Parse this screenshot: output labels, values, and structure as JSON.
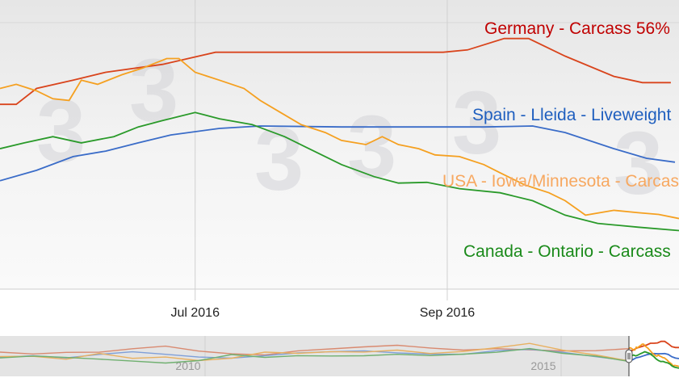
{
  "chart_data": {
    "type": "line",
    "title": "",
    "xlabel": "",
    "ylabel": "",
    "x_tick_labels": [
      "Jul 2016",
      "Sep 2016"
    ],
    "x_ticks": [
      "2016-07-01",
      "2016-09-01"
    ],
    "xlim": [
      "2016-05-14",
      "2016-10-28"
    ],
    "ylim": [
      0,
      120
    ],
    "y_axis_shown": false,
    "grid": true,
    "legend": "inline labels",
    "series": [
      {
        "name": "Germany - Carcass 56%",
        "color": "#d9441c",
        "label_color": "#c00000",
        "x": [
          "2016-05-14",
          "2016-05-18",
          "2016-05-23",
          "2016-06-01",
          "2016-06-09",
          "2016-06-23",
          "2016-07-06",
          "2016-08-31",
          "2016-09-06",
          "2016-09-15",
          "2016-09-21",
          "2016-09-30",
          "2016-10-12",
          "2016-10-19",
          "2016-10-26"
        ],
        "y": [
          76.7,
          76.7,
          83.3,
          86.7,
          90,
          93.3,
          98.3,
          98.3,
          99.3,
          104,
          104,
          96.7,
          88.3,
          85.7,
          85.7
        ]
      },
      {
        "name": "Spain - Lleida - Liveweight",
        "color": "#3a6cc8",
        "label_color": "#1f5fbf",
        "x": [
          "2016-05-14",
          "2016-05-23",
          "2016-06-01",
          "2016-06-09",
          "2016-06-17",
          "2016-06-25",
          "2016-07-07",
          "2016-07-17",
          "2016-08-06",
          "2016-09-10",
          "2016-09-22",
          "2016-09-30",
          "2016-10-12",
          "2016-10-20",
          "2016-10-27"
        ],
        "y": [
          45,
          49.3,
          55,
          57.3,
          60.7,
          64,
          66.7,
          67.7,
          67.3,
          67.3,
          67.7,
          65,
          58.3,
          54.3,
          52.7
        ]
      },
      {
        "name": "USA - Iowa/Minnesota - Carcass",
        "color": "#f5a020",
        "label_color": "#f7a860",
        "x": [
          "2016-05-14",
          "2016-05-18",
          "2016-05-23",
          "2016-05-27",
          "2016-05-31",
          "2016-06-03",
          "2016-06-07",
          "2016-06-13",
          "2016-06-18",
          "2016-06-24",
          "2016-06-27",
          "2016-07-01",
          "2016-07-07",
          "2016-07-13",
          "2016-07-17",
          "2016-07-22",
          "2016-07-27",
          "2016-08-02",
          "2016-08-06",
          "2016-08-12",
          "2016-08-16",
          "2016-08-20",
          "2016-08-25",
          "2016-08-29",
          "2016-09-04",
          "2016-09-10",
          "2016-09-14",
          "2016-09-20",
          "2016-09-26",
          "2016-09-30",
          "2016-10-05",
          "2016-10-12",
          "2016-10-18",
          "2016-10-23",
          "2016-10-28"
        ],
        "y": [
          83.3,
          85,
          82.3,
          79,
          78.3,
          86.7,
          85,
          89,
          91.7,
          95.7,
          95.7,
          90,
          86.7,
          83.3,
          78.3,
          73.3,
          68.3,
          65,
          61.7,
          60,
          63.3,
          60,
          58.3,
          55.7,
          55,
          51.7,
          48.3,
          43.3,
          40,
          36.7,
          30.7,
          32.7,
          31.7,
          31,
          29.3
        ]
      },
      {
        "name": "Canada - Ontario - Carcass",
        "color": "#2a9a2a",
        "label_color": "#1a8a1a",
        "x": [
          "2016-05-14",
          "2016-05-20",
          "2016-05-27",
          "2016-06-03",
          "2016-06-11",
          "2016-06-17",
          "2016-06-23",
          "2016-07-01",
          "2016-07-07",
          "2016-07-15",
          "2016-07-23",
          "2016-07-29",
          "2016-08-06",
          "2016-08-14",
          "2016-08-20",
          "2016-08-27",
          "2016-09-04",
          "2016-09-14",
          "2016-09-22",
          "2016-09-30",
          "2016-10-08",
          "2016-10-18",
          "2016-10-28"
        ],
        "y": [
          58.3,
          60.7,
          63.3,
          60.7,
          63.3,
          67.3,
          70,
          73.3,
          70.7,
          68.3,
          63.3,
          58.3,
          51.7,
          46.7,
          44,
          44.3,
          41.7,
          40,
          36.7,
          30.7,
          27.3,
          25.7,
          24.3
        ]
      }
    ],
    "navigator": {
      "tick_labels": [
        "2010",
        "2015"
      ],
      "series": [
        {
          "color": "#d98a70",
          "y": [
            60,
            58,
            62,
            60,
            66,
            72,
            62,
            58,
            56,
            64,
            66,
            70,
            76,
            72,
            68,
            70,
            64,
            60,
            62,
            70
          ]
        },
        {
          "color": "#7f9fd8",
          "y": [
            50,
            54,
            46,
            52,
            58,
            54,
            50,
            48,
            52,
            56,
            58,
            62,
            60,
            58,
            56,
            62,
            64,
            58,
            50,
            42
          ]
        },
        {
          "color": "#e8b060",
          "y": [
            52,
            50,
            40,
            54,
            44,
            50,
            42,
            46,
            58,
            54,
            60,
            62,
            68,
            58,
            60,
            68,
            80,
            66,
            56,
            40
          ]
        },
        {
          "color": "#70b070",
          "y": [
            46,
            48,
            44,
            42,
            40,
            36,
            40,
            52,
            44,
            50,
            52,
            54,
            56,
            50,
            52,
            58,
            70,
            60,
            52,
            36
          ]
        }
      ]
    }
  }
}
